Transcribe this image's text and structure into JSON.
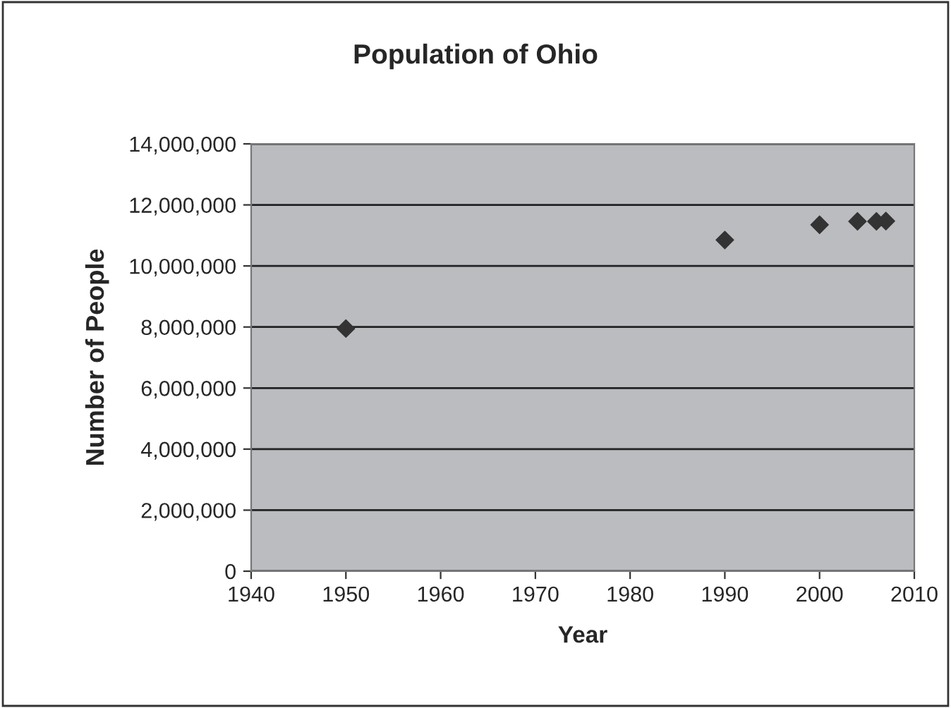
{
  "chart_data": {
    "type": "scatter",
    "title": "Population of Ohio",
    "xlabel": "Year",
    "ylabel": "Number of People",
    "x": [
      1950,
      1990,
      2000,
      2004,
      2006,
      2007
    ],
    "series": [
      {
        "color": "#333333",
        "values": [
          7950000,
          10850000,
          11350000,
          11460000,
          11460000,
          11470000
        ]
      }
    ],
    "xlim": [
      1940,
      2010
    ],
    "xticks": [
      1940,
      1950,
      1960,
      1970,
      1980,
      1990,
      2000,
      2010
    ],
    "ylim": [
      0,
      14000000
    ],
    "yticks": [
      {
        "value": 0,
        "label": "0"
      },
      {
        "value": 2000000,
        "label": "2,000,000"
      },
      {
        "value": 4000000,
        "label": "4,000,000"
      },
      {
        "value": 6000000,
        "label": "6,000,000"
      },
      {
        "value": 8000000,
        "label": "8,000,000"
      },
      {
        "value": 10000000,
        "label": "10,000,000"
      },
      {
        "value": 12000000,
        "label": "12,000,000"
      },
      {
        "value": 14000000,
        "label": "14,000,000"
      }
    ],
    "grid": "y",
    "marker": "diamond",
    "legend": false
  }
}
